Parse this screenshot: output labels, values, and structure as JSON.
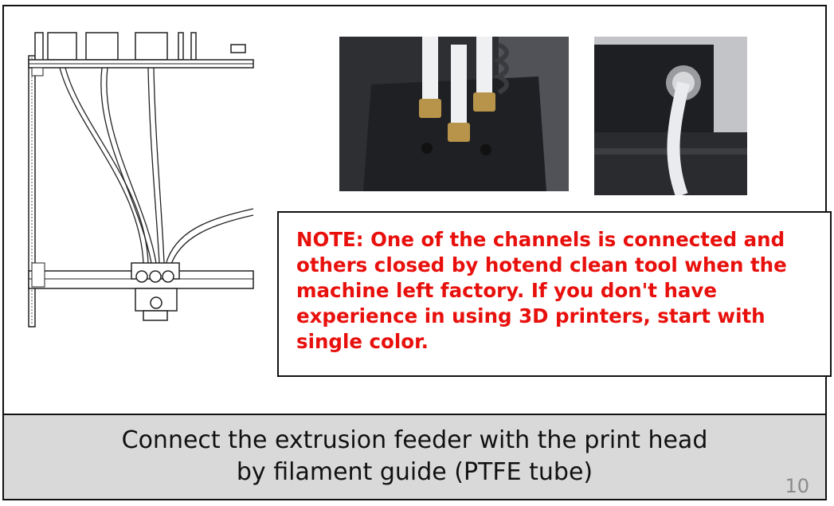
{
  "note": {
    "text": "NOTE:  One of the channels is connected and others closed by hotend clean tool when the machine left factory. If you don't have experience in using 3D printers, start with single color."
  },
  "caption": {
    "line1": "Connect the extrusion feeder with the print head",
    "line2": "by filament guide (PTFE tube)"
  },
  "page_number": "10",
  "colors": {
    "note_text": "#e8100c",
    "caption_background": "#d9d9d9",
    "border": "#111111"
  },
  "images": {
    "diagram": "printer-ptfe-routing-diagram",
    "photo_left": "print-head-ptfe-couplers-photo",
    "photo_right": "feeder-ptfe-coupler-photo"
  }
}
